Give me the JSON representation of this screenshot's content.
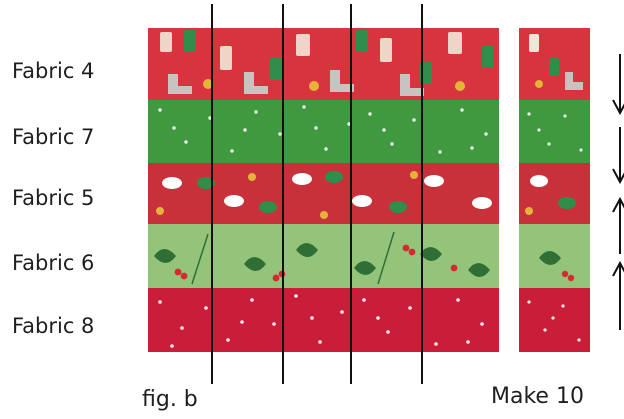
{
  "labels": [
    "Fabric 4",
    "Fabric 7",
    "Fabric 5",
    "Fabric 6",
    "Fabric 8"
  ],
  "captions": {
    "figure": "fig. b",
    "make": "Make 10"
  },
  "fabrics": {
    "fabric4": {
      "base": "#d8343d",
      "motif": "christmas-stockings-print"
    },
    "fabric7": {
      "base": "#3f9a3f",
      "motif": "white-dot-print"
    },
    "fabric5": {
      "base": "#c8303a",
      "motif": "candy-print"
    },
    "fabric6": {
      "base": "#93c47a",
      "motif": "holly-print"
    },
    "fabric8": {
      "base": "#c91d3a",
      "motif": "white-dot-print"
    }
  },
  "pressing_arrows": [
    "down",
    "down",
    "up",
    "up"
  ],
  "colors": {
    "text": "#1f1f1f",
    "cutline": "#111111"
  }
}
